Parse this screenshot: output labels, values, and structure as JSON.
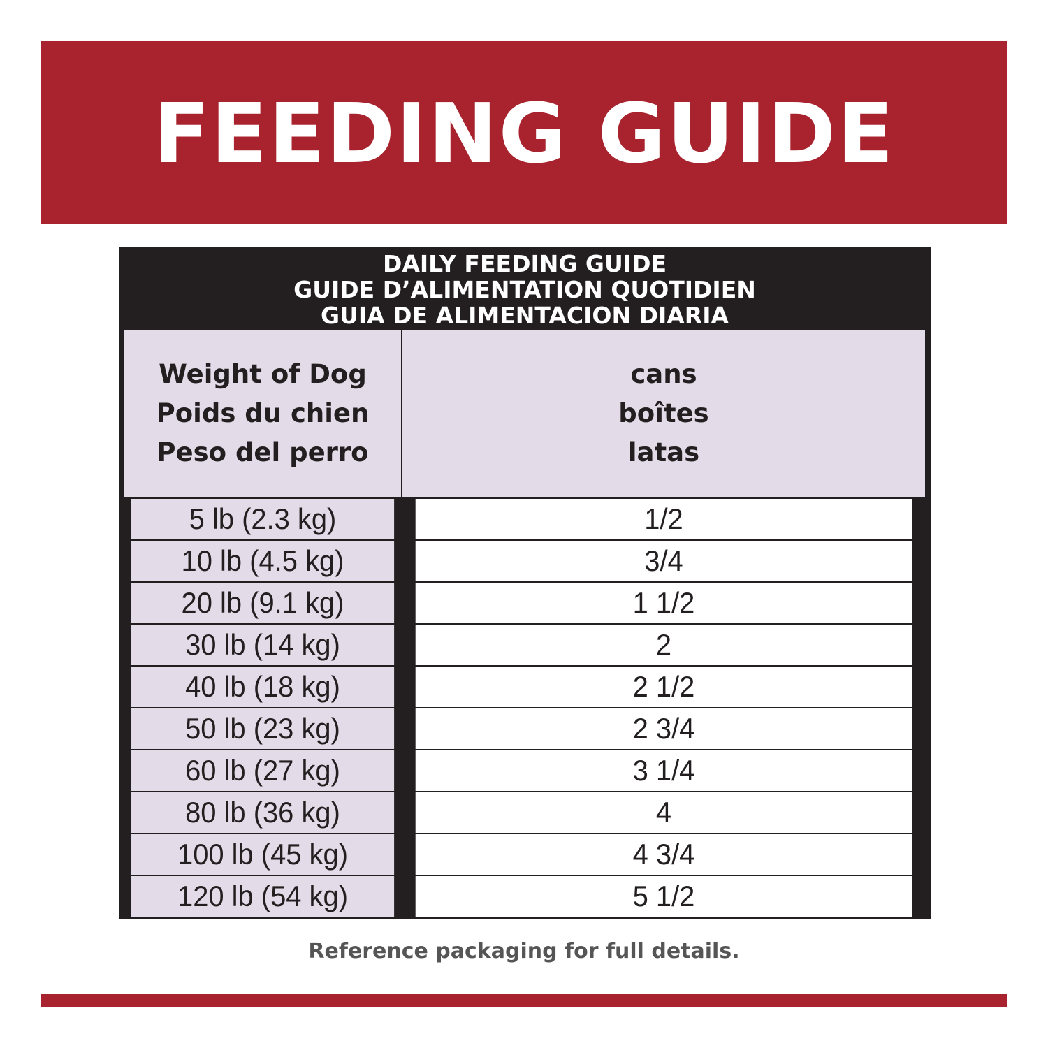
{
  "banner": {
    "title": "FEEDING GUIDE",
    "color": "#a8232d"
  },
  "table": {
    "header_lines": [
      "DAILY FEEDING GUIDE",
      "GUIDE D’ALIMENTATION QUOTIDIEN",
      "GUIA DE ALIMENTACION DIARIA"
    ],
    "col_weight": [
      "Weight of Dog",
      "Poids du chien",
      "Peso del perro"
    ],
    "col_cans": [
      "cans",
      "boîtes",
      "latas"
    ],
    "rows": [
      {
        "weight": "5 lb (2.3 kg)",
        "cans": "1/2"
      },
      {
        "weight": "10 lb (4.5 kg)",
        "cans": "3/4"
      },
      {
        "weight": "20 lb (9.1 kg)",
        "cans": "1 1/2"
      },
      {
        "weight": "30 lb (14 kg)",
        "cans": "2"
      },
      {
        "weight": "40 lb (18 kg)",
        "cans": "2 1/2"
      },
      {
        "weight": "50 lb (23 kg)",
        "cans": "2 3/4"
      },
      {
        "weight": "60 lb (27 kg)",
        "cans": "3 1/4"
      },
      {
        "weight": "80 lb (36 kg)",
        "cans": "4"
      },
      {
        "weight": "100 lb (45 kg)",
        "cans": "4 3/4"
      },
      {
        "weight": "120 lb (54 kg)",
        "cans": "5 1/2"
      }
    ],
    "header_bg": "#231f20",
    "label_bg": "#e4dbe8"
  },
  "footnote": "Reference packaging for full details."
}
